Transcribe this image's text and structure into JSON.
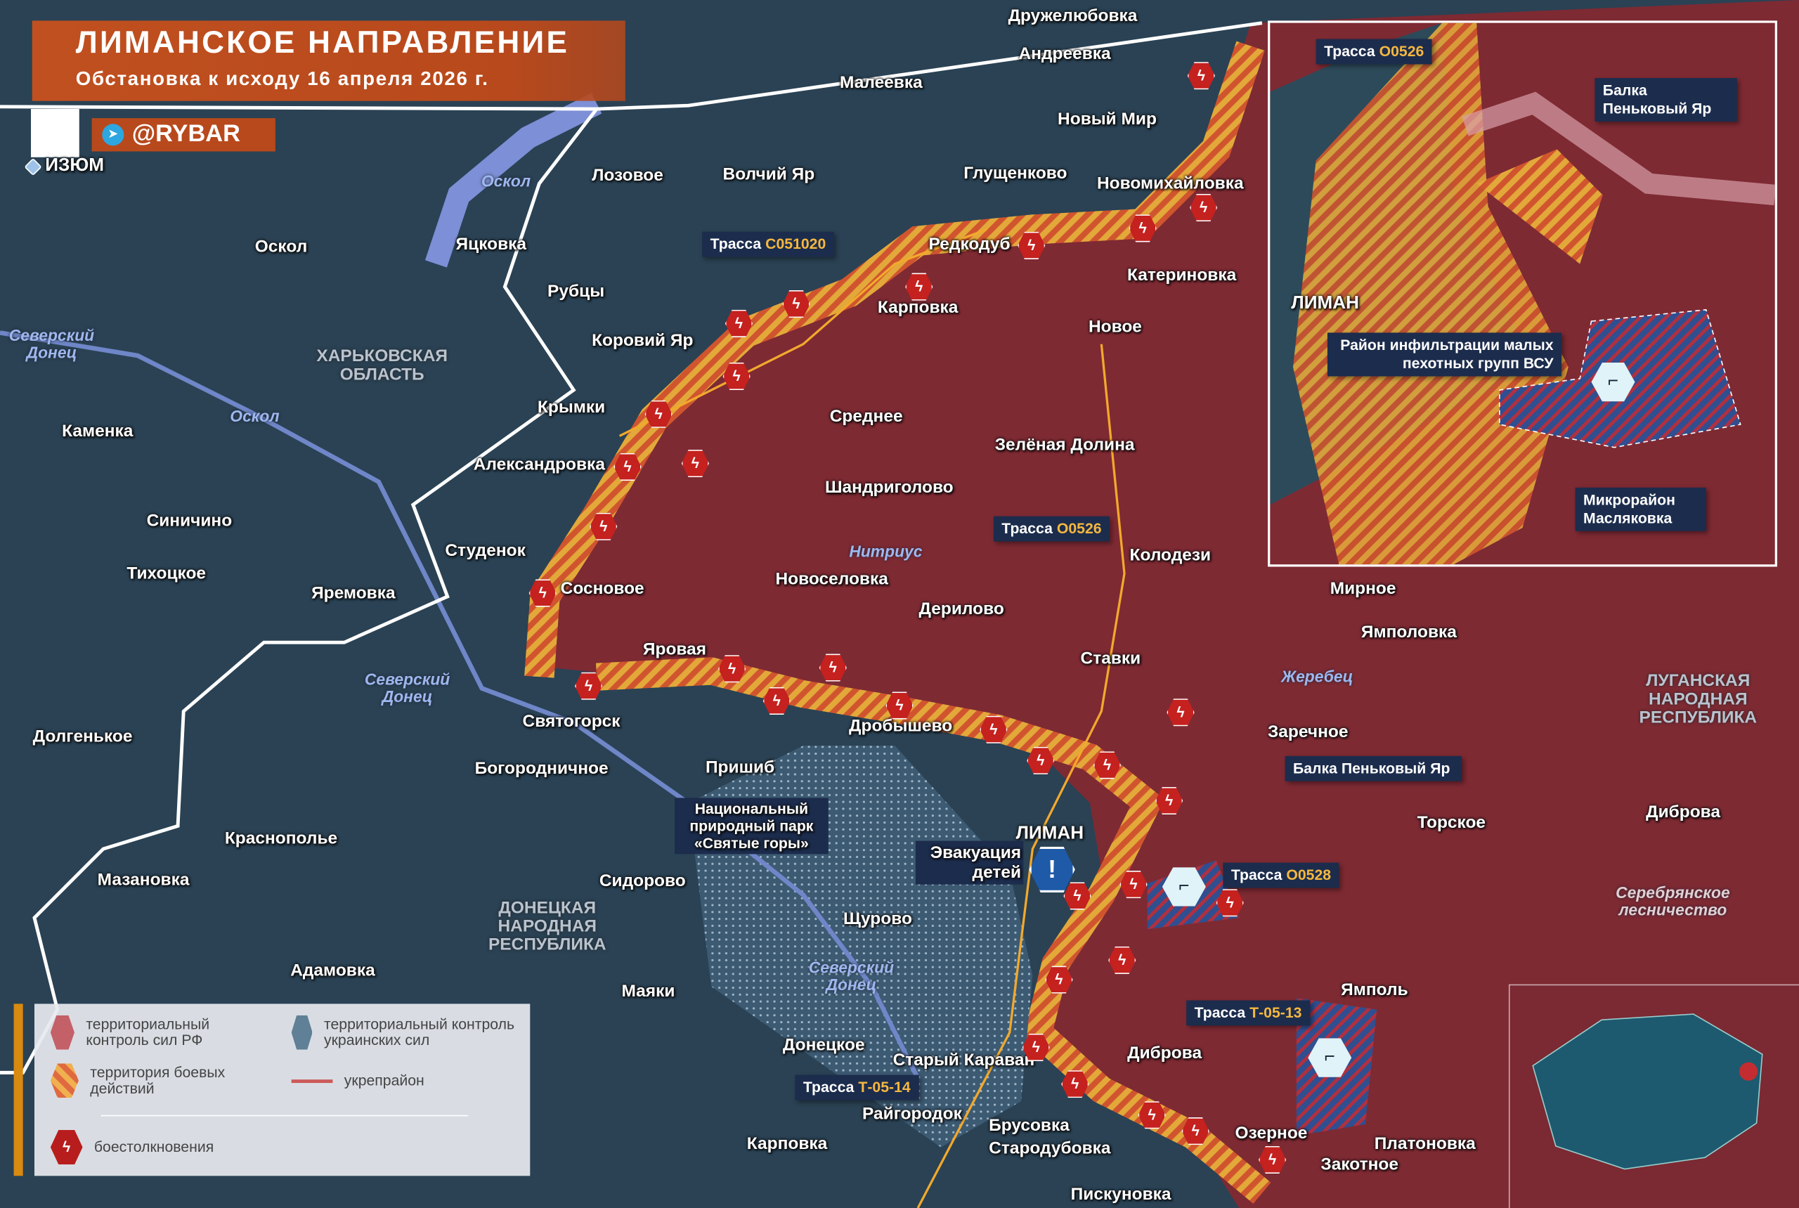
{
  "header": {
    "title": "ЛИМАНСКОЕ НАПРАВЛЕНИЕ",
    "subtitle": "Обстановка к исходу 16 апреля 2026 г.",
    "brand": "@RYBAR"
  },
  "colors": {
    "rf_control": "#7e2a33",
    "ua_control": "#2a4254",
    "combat_zone": "#e0a030",
    "clash": "#c4211f",
    "accent": "#b8491c",
    "callout_bg": "#1c2c4c",
    "route_code": "#f4b740"
  },
  "settlements": [
    "Дружелюбовка",
    "Андреевка",
    "Малеевка",
    "Новый Мир",
    "Лозовое",
    "Волчий Яр",
    "Глущенково",
    "Новомихайловка",
    "Оскол",
    "Яцковка",
    "Редкодуб",
    "Рубцы",
    "Карповка",
    "Катериновка",
    "Новое",
    "Коровий Яр",
    "Крымки",
    "Среднее",
    "Зелёная Долина",
    "Каменка",
    "Александровка",
    "Шандриголово",
    "Синичино",
    "Студенок",
    "Колодези",
    "Тихоцкое",
    "Яремовка",
    "Сосновое",
    "Новоселовка",
    "Дерилово",
    "Мирное",
    "Ямполовка",
    "Яровая",
    "Ставки",
    "Святогорск",
    "Дробышево",
    "Заречное",
    "Долгенькое",
    "Богородничное",
    "Пришиб",
    "Торское",
    "Диброва",
    "Краснополье",
    "Мазановка",
    "Сидорово",
    "Щурово",
    "Адамовка",
    "Маяки",
    "Ямполь",
    "Донецкое",
    "Старый Караван",
    "Диброва",
    "Райгородок",
    "Брусовка",
    "Карповка",
    "Стародубовка",
    "Озерное",
    "Платоновка",
    "Закотное",
    "Пискуновка"
  ],
  "cities": [
    "Изюм",
    "Лиман"
  ],
  "regions": [
    "Харьковская область",
    "Донецкая народная республика",
    "Луганская народная республика"
  ],
  "forest": "Серебрянское лесничество",
  "rivers": [
    "Северский Донец",
    "Оскол",
    "Оскол",
    "Северский Донец",
    "Нитриус",
    "Жеребец",
    "Северский Донец"
  ],
  "callouts": {
    "route_prefix": "Трасса",
    "routes": [
      "С051020",
      "О0526",
      "О0528",
      "Т-05-13",
      "Т-05-14"
    ],
    "balka": "Балка Пеньковый Яр",
    "park": "Национальный природный парк «Святые горы»",
    "evacuation": "Эвакуация детей"
  },
  "inset": {
    "route": "О0526",
    "balka": "Балка Пеньковый Яр",
    "city": "ЛИМАН",
    "infiltration": "Район инфильтрации малых пехотных групп ВСУ",
    "district": "Микрорайон Масляковка"
  },
  "legend": {
    "rf": "территориальный контроль сил РФ",
    "ua": "территориальный контроль украинских сил",
    "combat": "территория боевых действий",
    "fort": "укрепрайон",
    "clash": "боестолкновения"
  }
}
